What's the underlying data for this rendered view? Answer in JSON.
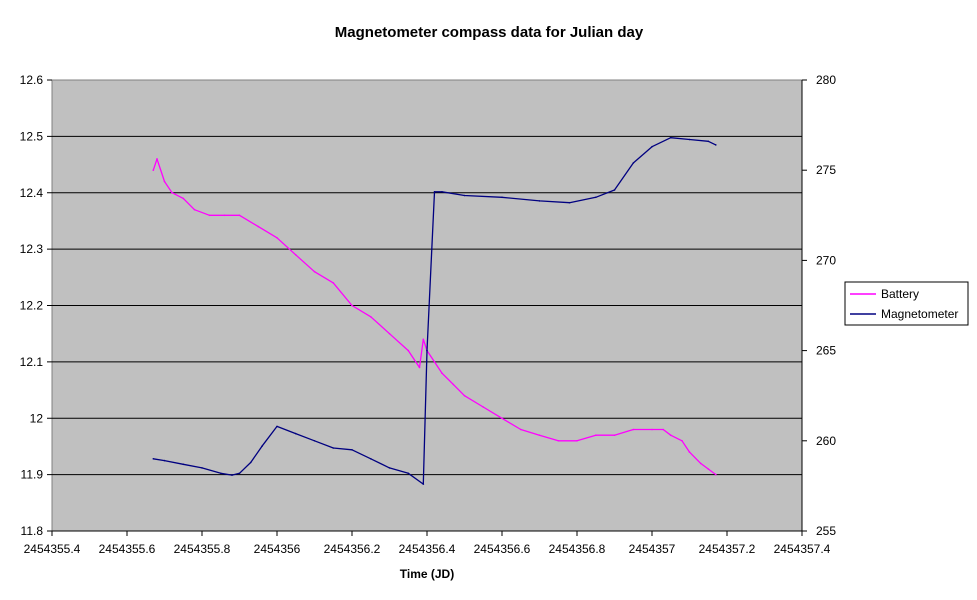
{
  "chart_data": {
    "type": "line",
    "title": "Magnetometer compass data for Julian day",
    "xlabel": "Time (JD)",
    "ylabel_left": "",
    "ylabel_right": "",
    "x_ticks": [
      "2454355.4",
      "2454355.6",
      "2454355.8",
      "2454356",
      "2454356.2",
      "2454356.4",
      "2454356.6",
      "2454356.8",
      "2454357",
      "2454357.2",
      "2454357.4"
    ],
    "y_left_ticks": [
      "12.6",
      "12.5",
      "12.4",
      "12.3",
      "12.2",
      "12.1",
      "12",
      "11.9",
      "11.8"
    ],
    "y_right_ticks": [
      "280",
      "275",
      "270",
      "265",
      "260",
      "255"
    ],
    "xlim": [
      2454355.4,
      2454357.4
    ],
    "ylim_left": [
      11.8,
      12.6
    ],
    "ylim_right": [
      255,
      280
    ],
    "grid": "horizontal",
    "plot_background": "#c0c0c0",
    "legend_position": "right",
    "series": [
      {
        "name": "Battery",
        "axis": "left",
        "color": "#ff00ff",
        "x": [
          2454355.67,
          2454355.68,
          2454355.7,
          2454355.72,
          2454355.75,
          2454355.78,
          2454355.82,
          2454355.86,
          2454355.9,
          2454355.95,
          2454356.0,
          2454356.05,
          2454356.1,
          2454356.15,
          2454356.2,
          2454356.25,
          2454356.3,
          2454356.35,
          2454356.38,
          2454356.39,
          2454356.4,
          2454356.42,
          2454356.44,
          2454356.47,
          2454356.5,
          2454356.55,
          2454356.6,
          2454356.65,
          2454356.7,
          2454356.75,
          2454356.8,
          2454356.85,
          2454356.9,
          2454356.95,
          2454357.0,
          2454357.03,
          2454357.05,
          2454357.08,
          2454357.1,
          2454357.13,
          2454357.15,
          2454357.17
        ],
        "y": [
          12.44,
          12.46,
          12.42,
          12.4,
          12.39,
          12.37,
          12.36,
          12.36,
          12.36,
          12.34,
          12.32,
          12.29,
          12.26,
          12.24,
          12.2,
          12.18,
          12.15,
          12.12,
          12.09,
          12.14,
          12.12,
          12.1,
          12.08,
          12.06,
          12.04,
          12.02,
          12.0,
          11.98,
          11.97,
          11.96,
          11.96,
          11.97,
          11.97,
          11.98,
          11.98,
          11.98,
          11.97,
          11.96,
          11.94,
          11.92,
          11.91,
          11.9
        ]
      },
      {
        "name": "Magnetometer",
        "axis": "right",
        "color": "#000080",
        "x": [
          2454355.67,
          2454355.7,
          2454355.75,
          2454355.8,
          2454355.85,
          2454355.88,
          2454355.9,
          2454355.93,
          2454355.96,
          2454356.0,
          2454356.05,
          2454356.1,
          2454356.15,
          2454356.2,
          2454356.25,
          2454356.3,
          2454356.35,
          2454356.39,
          2454356.4,
          2454356.42,
          2454356.44,
          2454356.5,
          2454356.6,
          2454356.7,
          2454356.78,
          2454356.85,
          2454356.9,
          2454356.95,
          2454357.0,
          2454357.05,
          2454357.1,
          2454357.15,
          2454357.17
        ],
        "y": [
          259.0,
          258.9,
          258.7,
          258.5,
          258.2,
          258.1,
          258.2,
          258.8,
          259.7,
          260.8,
          260.4,
          260.0,
          259.6,
          259.5,
          259.0,
          258.5,
          258.2,
          257.6,
          265.0,
          273.8,
          273.8,
          273.6,
          273.5,
          273.3,
          273.2,
          273.5,
          273.9,
          275.4,
          276.3,
          276.8,
          276.7,
          276.6,
          276.4
        ]
      }
    ]
  }
}
